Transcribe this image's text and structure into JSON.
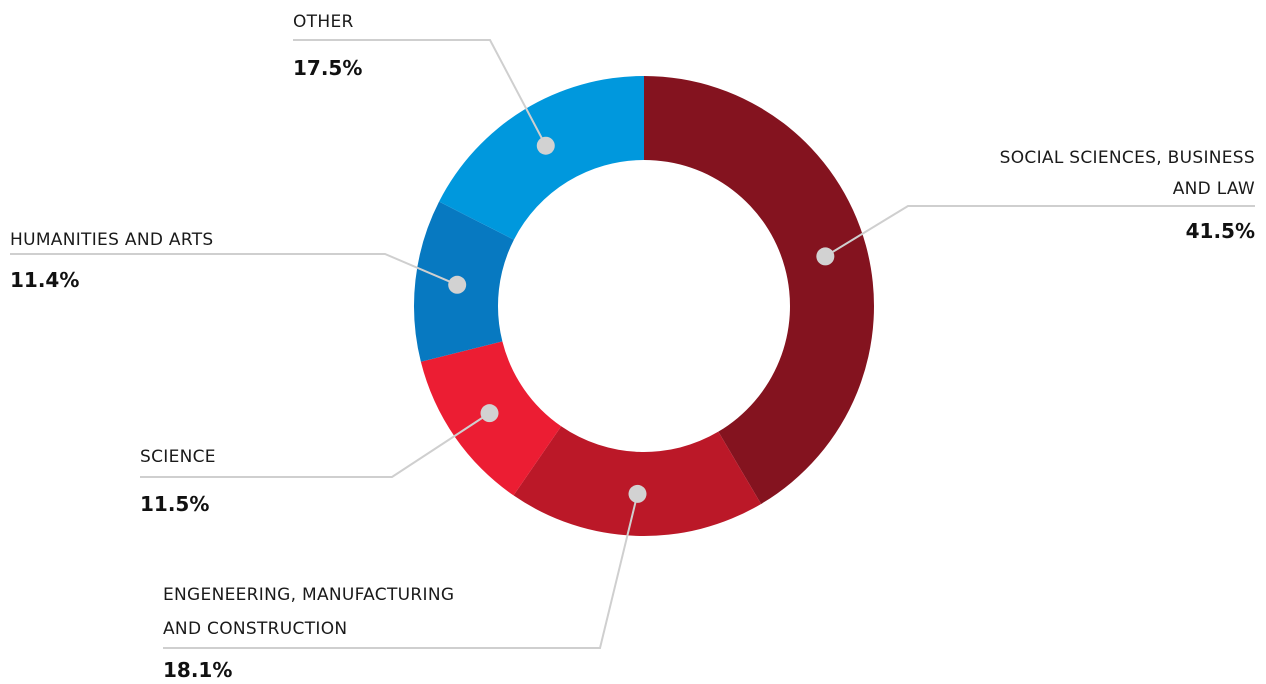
{
  "chart_data": {
    "type": "pie",
    "donut": true,
    "slices": [
      {
        "label_lines": [
          "SOCIAL SCIENCES, BUSINESS",
          "AND LAW"
        ],
        "value": 41.5,
        "value_label": "41.5%",
        "color": "#84131f"
      },
      {
        "label_lines": [
          "ENGENEERING, MANUFACTURING",
          "AND CONSTRUCTION"
        ],
        "value": 18.1,
        "value_label": "18.1%",
        "color": "#bb1828"
      },
      {
        "label_lines": [
          "SCIENCE"
        ],
        "value": 11.5,
        "value_label": "11.5%",
        "color": "#ec1d33"
      },
      {
        "label_lines": [
          "HUMANITIES AND ARTS"
        ],
        "value": 11.4,
        "value_label": "11.4%",
        "color": "#0779c1"
      },
      {
        "label_lines": [
          "OTHER"
        ],
        "value": 17.5,
        "value_label": "17.5%",
        "color": "#0098dd"
      }
    ]
  }
}
